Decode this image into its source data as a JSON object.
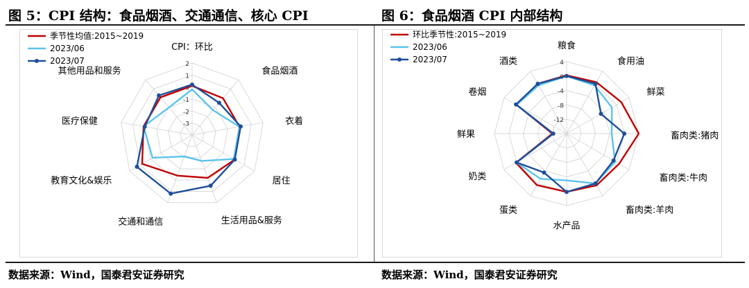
{
  "titles": {
    "left": "图 5：CPI 结构：食品烟酒、交通通信、核心 CPI",
    "right": "图 6：食品烟酒 CPI 内部结构"
  },
  "sources": {
    "left": "数据来源：Wind，国泰君安证券研究",
    "right": "数据来源：Wind，国泰君安证券研究"
  },
  "colors": {
    "seasonal": "#c00000",
    "jun": "#5bc3ec",
    "jul": "#1f4e99"
  },
  "chart_data": [
    {
      "type": "radar",
      "title": "",
      "categories": [
        "CPI：环比",
        "食品烟酒",
        "衣着",
        "居住",
        "生活用品&服务",
        "交通和通信",
        "教育文化&娱乐",
        "医疗保健",
        "其他用品和服务"
      ],
      "range": [
        -4,
        2
      ],
      "ticks": [
        2,
        1,
        0,
        -1,
        -2,
        -3
      ],
      "legend_position": "top-left",
      "series": [
        {
          "name": "季节性均值:2015~2019",
          "values": [
            0.1,
            0.0,
            0.0,
            0.1,
            -0.2,
            -0.4,
            0.8,
            0.1,
            0.1
          ]
        },
        {
          "name": "2023/06",
          "values": [
            -0.2,
            -1.3,
            0.0,
            0.0,
            -1.7,
            -2.1,
            -0.2,
            0.1,
            -1.0
          ]
        },
        {
          "name": "2023/07",
          "values": [
            0.2,
            -0.5,
            0.1,
            0.1,
            0.5,
            1.2,
            1.3,
            0.0,
            0.3
          ]
        }
      ]
    },
    {
      "type": "radar",
      "title": "",
      "categories": [
        "粮食",
        "食用油",
        "鲜菜",
        "畜肉类:猪肉",
        "畜肉类:牛肉",
        "畜肉类:羊肉",
        "水产品",
        "蛋类",
        "奶类",
        "鲜果",
        "卷烟",
        "酒类"
      ],
      "range": [
        -16,
        4
      ],
      "ticks": [
        4,
        0,
        -4,
        -8,
        -12
      ],
      "legend_position": "top-left",
      "series": [
        {
          "name": "环比季节性:2015~2019",
          "values": [
            0.2,
            0.5,
            1.5,
            4.0,
            0.8,
            0.6,
            0.2,
            0.5,
            0.2,
            -12.0,
            0.0,
            0.0
          ]
        },
        {
          "name": "2023/06",
          "values": [
            0.0,
            -0.5,
            -1.5,
            -3.5,
            -0.5,
            0.0,
            -3.0,
            -1.5,
            0.0,
            -12.3,
            0.0,
            -0.5
          ]
        },
        {
          "name": "2023/07",
          "values": [
            0.0,
            0.0,
            -5.0,
            0.0,
            -1.0,
            0.0,
            0.2,
            -3.5,
            0.0,
            -12.3,
            0.2,
            0.0
          ]
        }
      ]
    }
  ]
}
